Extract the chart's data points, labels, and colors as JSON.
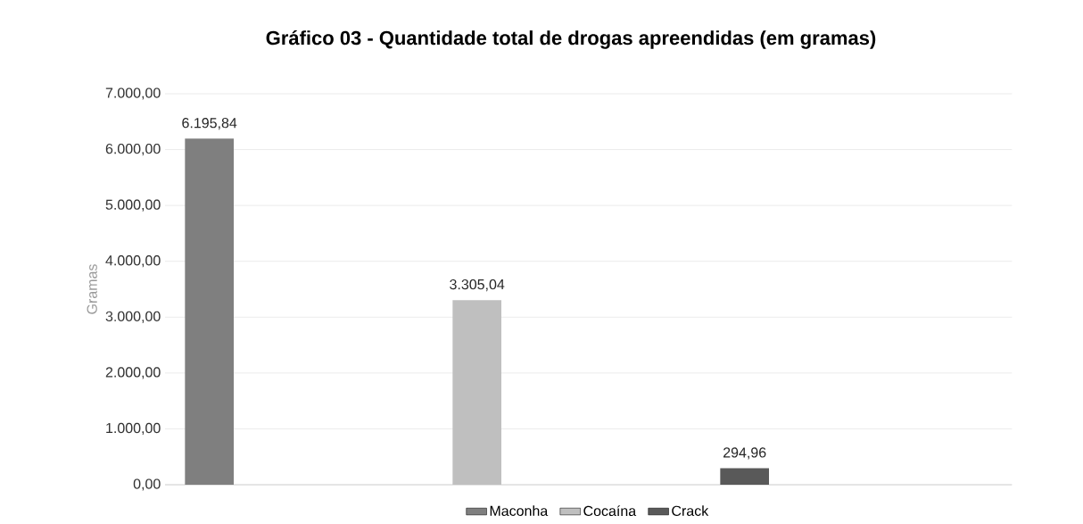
{
  "chart_data": {
    "type": "bar",
    "title": "Gráfico 03 - Quantidade total de drogas apreendidas (em gramas)",
    "ylabel": "Gramas",
    "categories": [
      null
    ],
    "series": [
      {
        "name": "Maconha",
        "color": "#7f7f7f",
        "values": [
          6195.84
        ],
        "value_labels": [
          "6.195,84"
        ]
      },
      {
        "name": "Cocaína",
        "color": "#bfbfbf",
        "values": [
          3305.04
        ],
        "value_labels": [
          "3.305,04"
        ]
      },
      {
        "name": "Crack",
        "color": "#595959",
        "values": [
          294.96
        ],
        "value_labels": [
          "294,96"
        ]
      }
    ],
    "ylim": [
      0,
      7000
    ],
    "yticks": [
      {
        "value": 0,
        "label": "0,00"
      },
      {
        "value": 1000,
        "label": "1.000,00"
      },
      {
        "value": 2000,
        "label": "2.000,00"
      },
      {
        "value": 3000,
        "label": "3.000,00"
      },
      {
        "value": 4000,
        "label": "4.000,00"
      },
      {
        "value": 5000,
        "label": "5.000,00"
      },
      {
        "value": 6000,
        "label": "6.000,00"
      },
      {
        "value": 7000,
        "label": "7.000,00"
      }
    ],
    "grid": "y",
    "legend": "bottom"
  }
}
